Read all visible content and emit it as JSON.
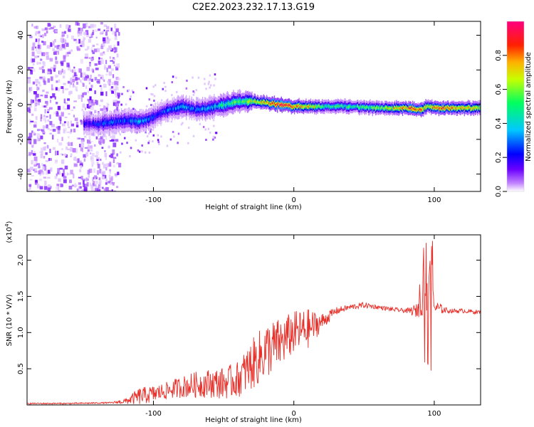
{
  "title": "C2E2.2023.232.17.13.G19",
  "top_panel": {
    "xlabel": "Height of straight line (km)",
    "ylabel": "Frequency (Hz)",
    "xlim": [
      -190,
      133
    ],
    "ylim": [
      -50,
      48
    ],
    "xticks": [
      "-100",
      "0",
      "100"
    ],
    "yticks": [
      "-40",
      "-20",
      "0",
      "20",
      "40"
    ],
    "colorbar": {
      "label": "Normalized spectral amplitude",
      "range": [
        0.0,
        1.0
      ],
      "ticks": [
        "0.0",
        "0.2",
        "0.4",
        "0.6",
        "0.8"
      ],
      "colors": [
        "#ffffff",
        "#c080ff",
        "#6a00ff",
        "#0000ff",
        "#00c8ff",
        "#00ff60",
        "#c8ff00",
        "#ffb000",
        "#ff2000",
        "#ff0080"
      ]
    }
  },
  "bottom_panel": {
    "xlabel": "Height of straight line (km)",
    "ylabel": "SNR (10 * V/V)",
    "multiplier": "(x10",
    "multiplier_exp": "4",
    "multiplier_close": ")",
    "xlim": [
      -190,
      133
    ],
    "ylim": [
      0,
      2.35
    ],
    "xticks": [
      "-100",
      "0",
      "100"
    ],
    "yticks": [
      "0.5",
      "1.0",
      "1.5",
      "2.0"
    ],
    "line_color": "#e8302a"
  },
  "chart_data": [
    {
      "type": "heatmap",
      "xlabel": "Height of straight line (km)",
      "ylabel": "Frequency (Hz)",
      "xlim": [
        -190,
        133
      ],
      "ylim": [
        -50,
        48
      ],
      "ridge": {
        "x": [
          -150,
          -140,
          -130,
          -120,
          -110,
          -100,
          -90,
          -80,
          -70,
          -60,
          -50,
          -40,
          -30,
          -20,
          -10,
          0,
          10,
          20,
          40,
          60,
          80,
          90,
          95,
          100,
          120,
          133
        ],
        "freq": [
          -11,
          -11,
          -10,
          -9,
          -10,
          -7,
          -3,
          -1,
          -3,
          -2,
          0,
          2,
          2,
          1,
          0,
          -1,
          -1,
          -1,
          -1,
          -2,
          -2,
          -3,
          -1,
          -2,
          -2,
          -2
        ],
        "amplitude": [
          0.3,
          0.35,
          0.4,
          0.4,
          0.45,
          0.35,
          0.4,
          0.45,
          0.4,
          0.45,
          0.55,
          0.6,
          0.7,
          0.85,
          0.95,
          0.9,
          0.8,
          0.6,
          0.55,
          0.65,
          0.9,
          0.85,
          0.7,
          0.9,
          0.8,
          0.7
        ]
      },
      "noise_region_x": [
        -190,
        -125
      ]
    },
    {
      "type": "line",
      "xlabel": "Height of straight line (km)",
      "ylabel": "SNR (10 * V/V)",
      "y_scale": 10000,
      "xlim": [
        -190,
        133
      ],
      "ylim": [
        0,
        2.35
      ],
      "x": [
        -190,
        -160,
        -130,
        -120,
        -110,
        -100,
        -90,
        -80,
        -70,
        -60,
        -50,
        -40,
        -30,
        -20,
        -10,
        0,
        10,
        20,
        30,
        40,
        50,
        60,
        70,
        80,
        88,
        93,
        97,
        100,
        110,
        120,
        133
      ],
      "y": [
        0.02,
        0.02,
        0.03,
        0.05,
        0.12,
        0.15,
        0.2,
        0.25,
        0.28,
        0.3,
        0.3,
        0.35,
        0.55,
        0.75,
        0.85,
        1.0,
        1.05,
        1.15,
        1.3,
        1.35,
        1.38,
        1.35,
        1.32,
        1.3,
        1.3,
        1.8,
        2.0,
        1.35,
        1.3,
        1.3,
        1.28
      ],
      "noise_amp": [
        0.01,
        0.01,
        0.01,
        0.04,
        0.12,
        0.12,
        0.12,
        0.15,
        0.18,
        0.2,
        0.22,
        0.25,
        0.35,
        0.4,
        0.35,
        0.3,
        0.28,
        0.12,
        0.05,
        0.04,
        0.04,
        0.03,
        0.03,
        0.03,
        0.1,
        0.55,
        0.7,
        0.1,
        0.03,
        0.03,
        0.03
      ],
      "peak_max": 2.3
    }
  ]
}
